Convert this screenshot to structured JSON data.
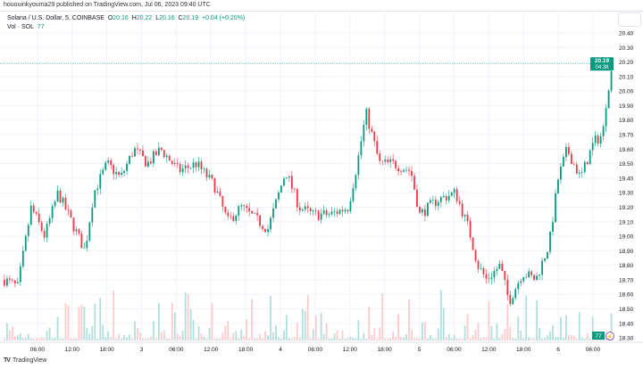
{
  "publisher_line": "hououinkyouma29 published on TradingView.com, Jul 06, 2023 09:40 UTC",
  "legend": {
    "symbol": "Solana / U.S. Dollar, 5, COINBASE",
    "o_label": "O",
    "o": "20.16",
    "h_label": "H",
    "h": "20.22",
    "l_label": "L",
    "l": "20.16",
    "c_label": "C",
    "c": "20.19",
    "change": "+0.04 (+0.20%)",
    "vol_label": "Vol · SOL",
    "vol": "77"
  },
  "price_axis": {
    "ticks": [
      "20.40",
      "20.30",
      "20.20",
      "20.10",
      "20.00",
      "19.90",
      "19.80",
      "19.70",
      "19.60",
      "19.50",
      "19.40",
      "19.30",
      "19.20",
      "19.10",
      "19.00",
      "18.90",
      "18.80",
      "18.70",
      "18.60",
      "18.50",
      "18.40",
      "18.30"
    ],
    "last_price": "20.19",
    "countdown": "04:38",
    "volume_badge": "77"
  },
  "time_axis": {
    "ticks": [
      "06:00",
      "12:00",
      "18:00",
      "3",
      "06:00",
      "12:00",
      "18:00",
      "4",
      "06:00",
      "12:00",
      "18:00",
      "5",
      "06:00",
      "12:00",
      "18:00",
      "6",
      "06:00"
    ]
  },
  "footer": {
    "logo": "TradingView",
    "brand": "TradingView"
  },
  "colors": {
    "up": "#089981",
    "down": "#f23645",
    "up_vol": "#b2dfdb",
    "down_vol": "#fccbcd",
    "grid": "#f0f3fa",
    "last_price": "#089981"
  },
  "chart_data": {
    "type": "candlestick",
    "symbol": "SOLUSD",
    "interval": "5",
    "ylim": [
      18.3,
      20.4
    ],
    "price_path": [
      [
        "07-02 00:18",
        18.7
      ],
      [
        "07-02 02:36",
        18.65
      ],
      [
        "07-02 04:56",
        19.2
      ],
      [
        "07-02 07:15",
        19.0
      ],
      [
        "07-02 09:34",
        19.3
      ],
      [
        "07-02 11:53",
        19.1
      ],
      [
        "07-02 14:12",
        18.9
      ],
      [
        "07-02 15:44",
        19.3
      ],
      [
        "07-02 18:03",
        19.5
      ],
      [
        "07-02 20:22",
        19.4
      ],
      [
        "07-02 22:41",
        19.6
      ],
      [
        "07-03 01:00",
        19.5
      ],
      [
        "07-03 03:19",
        19.6
      ],
      [
        "07-03 06:24",
        19.45
      ],
      [
        "07-03 09:29",
        19.5
      ],
      [
        "07-03 12:34",
        19.35
      ],
      [
        "07-03 14:53",
        19.1
      ],
      [
        "07-03 17:12",
        19.2
      ],
      [
        "07-03 21:50",
        19.05
      ],
      [
        "07-04 00:55",
        19.45
      ],
      [
        "07-04 03:14",
        19.2
      ],
      [
        "07-04 05:33",
        19.15
      ],
      [
        "07-04 08:38",
        19.15
      ],
      [
        "07-04 11:43",
        19.2
      ],
      [
        "07-04 13:16",
        19.5
      ],
      [
        "07-04 14:48",
        19.85
      ],
      [
        "07-04 17:07",
        19.5
      ],
      [
        "07-04 19:26",
        19.5
      ],
      [
        "07-04 22:31",
        19.45
      ],
      [
        "07-05 00:04",
        19.15
      ],
      [
        "07-05 03:09",
        19.25
      ],
      [
        "07-05 06:14",
        19.3
      ],
      [
        "07-05 08:33",
        19.05
      ],
      [
        "07-05 10:06",
        18.8
      ],
      [
        "07-05 11:38",
        18.7
      ],
      [
        "07-05 13:57",
        18.8
      ],
      [
        "07-05 15:30",
        18.55
      ],
      [
        "07-05 17:49",
        18.75
      ],
      [
        "07-05 20:08",
        18.7
      ],
      [
        "07-05 22:27",
        18.95
      ],
      [
        "07-06 00:00",
        19.4
      ],
      [
        "07-06 01:32",
        19.6
      ],
      [
        "07-06 03:51",
        19.4
      ],
      [
        "07-06 06:10",
        19.65
      ],
      [
        "07-06 07:42",
        19.7
      ],
      [
        "07-06 08:28",
        20.0
      ],
      [
        "07-06 09:35",
        20.19
      ]
    ]
  }
}
